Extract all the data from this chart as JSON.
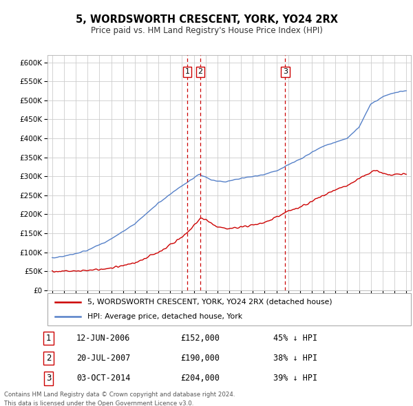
{
  "title": "5, WORDSWORTH CRESCENT, YORK, YO24 2RX",
  "subtitle": "Price paid vs. HM Land Registry's House Price Index (HPI)",
  "ylabel_ticks": [
    "£0",
    "£50K",
    "£100K",
    "£150K",
    "£200K",
    "£250K",
    "£300K",
    "£350K",
    "£400K",
    "£450K",
    "£500K",
    "£550K",
    "£600K"
  ],
  "ytick_values": [
    0,
    50000,
    100000,
    150000,
    200000,
    250000,
    300000,
    350000,
    400000,
    450000,
    500000,
    550000,
    600000
  ],
  "legend_items": [
    "5, WORDSWORTH CRESCENT, YORK, YO24 2RX (detached house)",
    "HPI: Average price, detached house, York"
  ],
  "legend_colors": [
    "#cc0000",
    "#5580c8"
  ],
  "transactions": [
    {
      "num": "1",
      "date": "12-JUN-2006",
      "price": "£152,000",
      "pct": "45% ↓ HPI",
      "x": 2006.45
    },
    {
      "num": "2",
      "date": "20-JUL-2007",
      "price": "£190,000",
      "pct": "38% ↓ HPI",
      "x": 2007.55
    },
    {
      "num": "3",
      "date": "03-OCT-2014",
      "price": "£204,000",
      "pct": "39% ↓ HPI",
      "x": 2014.75
    }
  ],
  "footnote1": "Contains HM Land Registry data © Crown copyright and database right 2024.",
  "footnote2": "This data is licensed under the Open Government Licence v3.0.",
  "hpi_color": "#5580c8",
  "price_color": "#cc0000",
  "grid_color": "#cccccc",
  "background_color": "#ffffff",
  "vline_color": "#cc0000",
  "xlim": [
    1994.6,
    2025.4
  ],
  "ylim": [
    0,
    620000
  ],
  "xticks": [
    1995,
    1996,
    1997,
    1998,
    1999,
    2000,
    2001,
    2002,
    2003,
    2004,
    2005,
    2006,
    2007,
    2008,
    2009,
    2010,
    2011,
    2012,
    2013,
    2014,
    2015,
    2016,
    2017,
    2018,
    2019,
    2020,
    2021,
    2022,
    2023,
    2024,
    2025
  ]
}
